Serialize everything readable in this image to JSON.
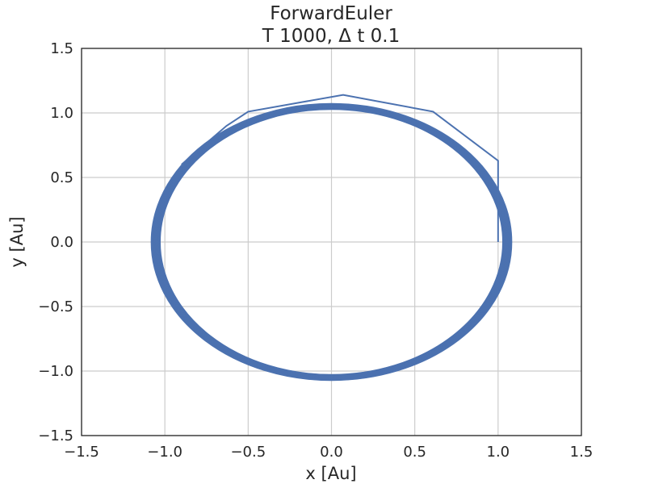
{
  "chart_data": {
    "type": "line",
    "title": "ForwardEuler",
    "subtitle": "T 1000, Δ t 0.1",
    "xlabel": "x [Au]",
    "ylabel": "y [Au]",
    "xlim": [
      -1.5,
      1.5
    ],
    "ylim": [
      -1.5,
      1.5
    ],
    "xticks": [
      -1.5,
      -1.0,
      -0.5,
      0.0,
      0.5,
      1.0,
      1.5
    ],
    "yticks": [
      -1.5,
      -1.0,
      -0.5,
      0.0,
      0.5,
      1.0,
      1.5
    ],
    "xtick_labels": [
      "−1.5",
      "−1.0",
      "−0.5",
      "0.0",
      "0.5",
      "1.0",
      "1.5"
    ],
    "ytick_labels": [
      "−1.5",
      "−1.0",
      "−0.5",
      "0.0",
      "0.5",
      "1.0",
      "1.5"
    ],
    "grid": true,
    "series_color": "#4c72b0",
    "series": [
      {
        "name": "",
        "kind": "initial_steps",
        "x": [
          1.0,
          1.0,
          0.61,
          0.07,
          -0.5,
          -0.63,
          -0.9
        ],
        "y": [
          0.0,
          0.63,
          1.01,
          1.14,
          1.01,
          0.9,
          0.6
        ]
      },
      {
        "name": "",
        "kind": "orbit_band",
        "center": [
          0.0,
          0.0
        ],
        "radius_x_range": [
          1.03,
          1.08
        ],
        "radius_y_range": [
          1.03,
          1.07
        ]
      }
    ]
  }
}
